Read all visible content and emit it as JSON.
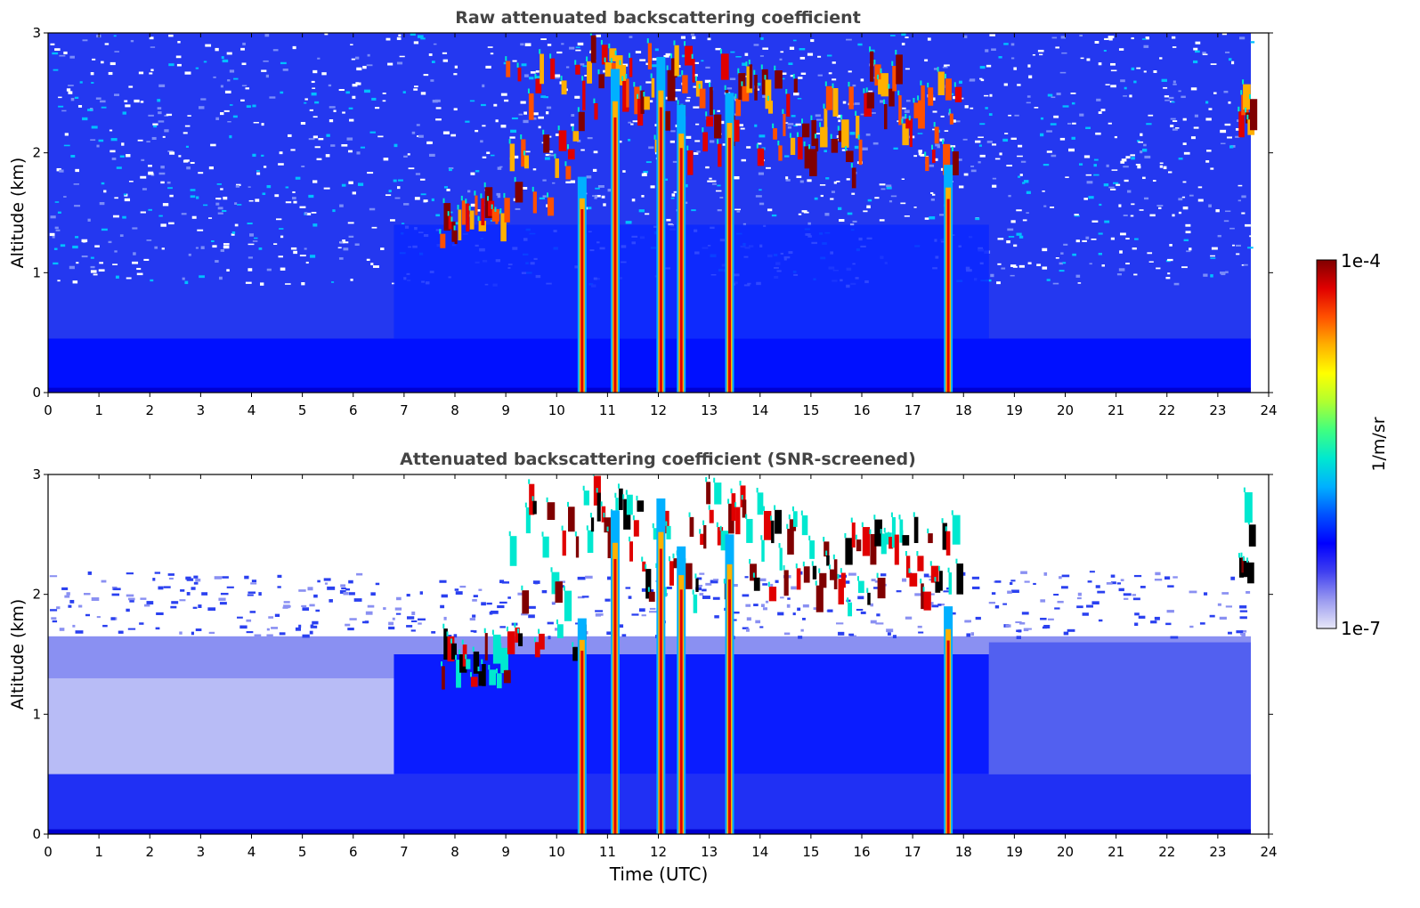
{
  "chart_data": [
    {
      "type": "heatmap",
      "title": "Raw attenuated backscattering coefficient",
      "xlabel": "",
      "ylabel": "Altitude (km)",
      "xlim": [
        0,
        24
      ],
      "ylim": [
        0,
        3
      ],
      "x_ticks": [
        "0",
        "1",
        "2",
        "3",
        "4",
        "5",
        "6",
        "7",
        "8",
        "9",
        "10",
        "11",
        "12",
        "13",
        "14",
        "15",
        "16",
        "17",
        "18",
        "19",
        "20",
        "21",
        "22",
        "23",
        "24"
      ],
      "y_ticks": [
        "0",
        "1",
        "2",
        "3"
      ],
      "data_end_time": 23.65,
      "screened": false,
      "vertical_streaks": [
        {
          "time": 10.5,
          "altitude_top": 1.8
        },
        {
          "time": 11.15,
          "altitude_top": 2.7
        },
        {
          "time": 12.05,
          "altitude_top": 2.8
        },
        {
          "time": 12.45,
          "altitude_top": 2.4
        },
        {
          "time": 13.4,
          "altitude_top": 2.5
        },
        {
          "time": 17.7,
          "altitude_top": 1.9
        }
      ],
      "cloud_layers": [
        {
          "t0": 7.7,
          "t1": 9.0,
          "a0": 1.2,
          "a1": 1.5
        },
        {
          "t0": 9.0,
          "t1": 10.5,
          "a0": 1.4,
          "a1": 2.7
        },
        {
          "t0": 10.5,
          "t1": 11.5,
          "a0": 2.2,
          "a1": 2.8
        },
        {
          "t0": 11.5,
          "t1": 12.5,
          "a0": 1.9,
          "a1": 2.7
        },
        {
          "t0": 12.5,
          "t1": 14.0,
          "a0": 1.8,
          "a1": 2.8
        },
        {
          "t0": 14.0,
          "t1": 15.0,
          "a0": 1.8,
          "a1": 2.6
        },
        {
          "t0": 15.0,
          "t1": 16.0,
          "a0": 1.7,
          "a1": 2.4
        },
        {
          "t0": 16.0,
          "t1": 17.0,
          "a0": 1.9,
          "a1": 2.6
        },
        {
          "t0": 17.0,
          "t1": 17.9,
          "a0": 1.8,
          "a1": 2.5
        },
        {
          "t0": 23.4,
          "t1": 23.65,
          "a0": 2.0,
          "a1": 2.65
        }
      ]
    },
    {
      "type": "heatmap",
      "title": "Attenuated backscattering coefficient (SNR-screened)",
      "xlabel": "Time (UTC)",
      "ylabel": "Altitude (km)",
      "xlim": [
        0,
        24
      ],
      "ylim": [
        0,
        3
      ],
      "x_ticks": [
        "0",
        "1",
        "2",
        "3",
        "4",
        "5",
        "6",
        "7",
        "8",
        "9",
        "10",
        "11",
        "12",
        "13",
        "14",
        "15",
        "16",
        "17",
        "18",
        "19",
        "20",
        "21",
        "22",
        "23",
        "24"
      ],
      "y_ticks": [
        "0",
        "1",
        "2",
        "3"
      ],
      "data_end_time": 23.65,
      "screened": true,
      "vertical_streaks": [
        {
          "time": 10.5,
          "altitude_top": 1.8
        },
        {
          "time": 11.15,
          "altitude_top": 2.7
        },
        {
          "time": 12.05,
          "altitude_top": 2.8
        },
        {
          "time": 12.45,
          "altitude_top": 2.4
        },
        {
          "time": 13.4,
          "altitude_top": 2.5
        },
        {
          "time": 17.7,
          "altitude_top": 1.9
        }
      ],
      "cloud_layers": [
        {
          "t0": 7.7,
          "t1": 9.0,
          "a0": 1.2,
          "a1": 1.5
        },
        {
          "t0": 9.0,
          "t1": 10.5,
          "a0": 1.4,
          "a1": 2.7
        },
        {
          "t0": 10.5,
          "t1": 11.5,
          "a0": 2.2,
          "a1": 2.8
        },
        {
          "t0": 11.5,
          "t1": 12.5,
          "a0": 1.9,
          "a1": 2.7
        },
        {
          "t0": 12.5,
          "t1": 14.0,
          "a0": 1.8,
          "a1": 2.8
        },
        {
          "t0": 14.0,
          "t1": 15.0,
          "a0": 1.8,
          "a1": 2.6
        },
        {
          "t0": 15.0,
          "t1": 16.0,
          "a0": 1.7,
          "a1": 2.4
        },
        {
          "t0": 16.0,
          "t1": 17.0,
          "a0": 1.9,
          "a1": 2.6
        },
        {
          "t0": 17.0,
          "t1": 17.9,
          "a0": 1.8,
          "a1": 2.5
        },
        {
          "t0": 23.4,
          "t1": 23.65,
          "a0": 2.0,
          "a1": 2.65
        }
      ]
    }
  ],
  "colorbar": {
    "label": "1/m/sr",
    "max_label": "1e-4",
    "min_label": "1e-7",
    "colors": [
      "#e8e8f8",
      "#9a9af0",
      "#4040f0",
      "#0000ff",
      "#0050ff",
      "#00b0ff",
      "#00e8d0",
      "#40ff80",
      "#b0ff30",
      "#ffff00",
      "#ffb000",
      "#ff5000",
      "#e00000",
      "#800000"
    ]
  }
}
